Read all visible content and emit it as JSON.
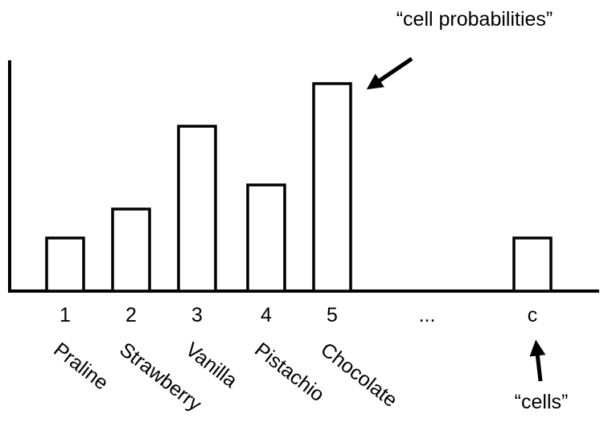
{
  "chart_data": {
    "type": "bar",
    "categories": [
      "1",
      "2",
      "3",
      "4",
      "5",
      "...",
      "c"
    ],
    "names": [
      "Praline",
      "Strawberry",
      "Vanilla",
      "Pistachio",
      "Chocolate",
      null,
      null
    ],
    "values": [
      66,
      102,
      205,
      132,
      258,
      null,
      66
    ],
    "ylim": [
      0,
      287
    ],
    "color": "#ffffff",
    "annotations": [
      "“cell probabilities”",
      "“cells”"
    ]
  }
}
